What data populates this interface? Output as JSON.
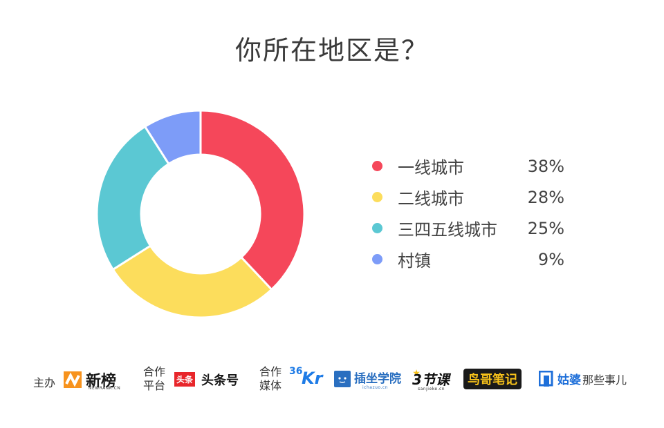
{
  "title": "你所在地区是？",
  "chart_data": {
    "type": "pie",
    "title": "你所在地区是？",
    "categories": [
      "一线城市",
      "二线城市",
      "三四五线城市",
      "村镇"
    ],
    "values": [
      38,
      28,
      25,
      9
    ],
    "value_labels": [
      "38%",
      "28%",
      "25%",
      "9%"
    ],
    "colors": [
      "#f5475a",
      "#fcdd5c",
      "#5bc8d3",
      "#7d9cf8"
    ],
    "donut": true,
    "legend": "right"
  },
  "footer": {
    "host_label": "主办",
    "host_logo_text": "新榜",
    "host_logo_sub": "NEWRANK.CN",
    "platform_label_1": "合作",
    "platform_label_2": "平台",
    "platform_badge": "头条",
    "platform_logo_text": "头条号",
    "media_label_1": "合作",
    "media_label_2": "媒体",
    "media_logos": {
      "kr_num": "36",
      "kr_text": "Kr",
      "chazuo_text": "插坐学院",
      "chazuo_sub": "ichazuo.cn",
      "sanjieke_text": "3节课",
      "sanjieke_sub": "sanjieke.cn",
      "niaoge_text": "鸟哥笔记",
      "gupo_text": "姑婆",
      "gupo_rest": "那些事儿"
    }
  }
}
